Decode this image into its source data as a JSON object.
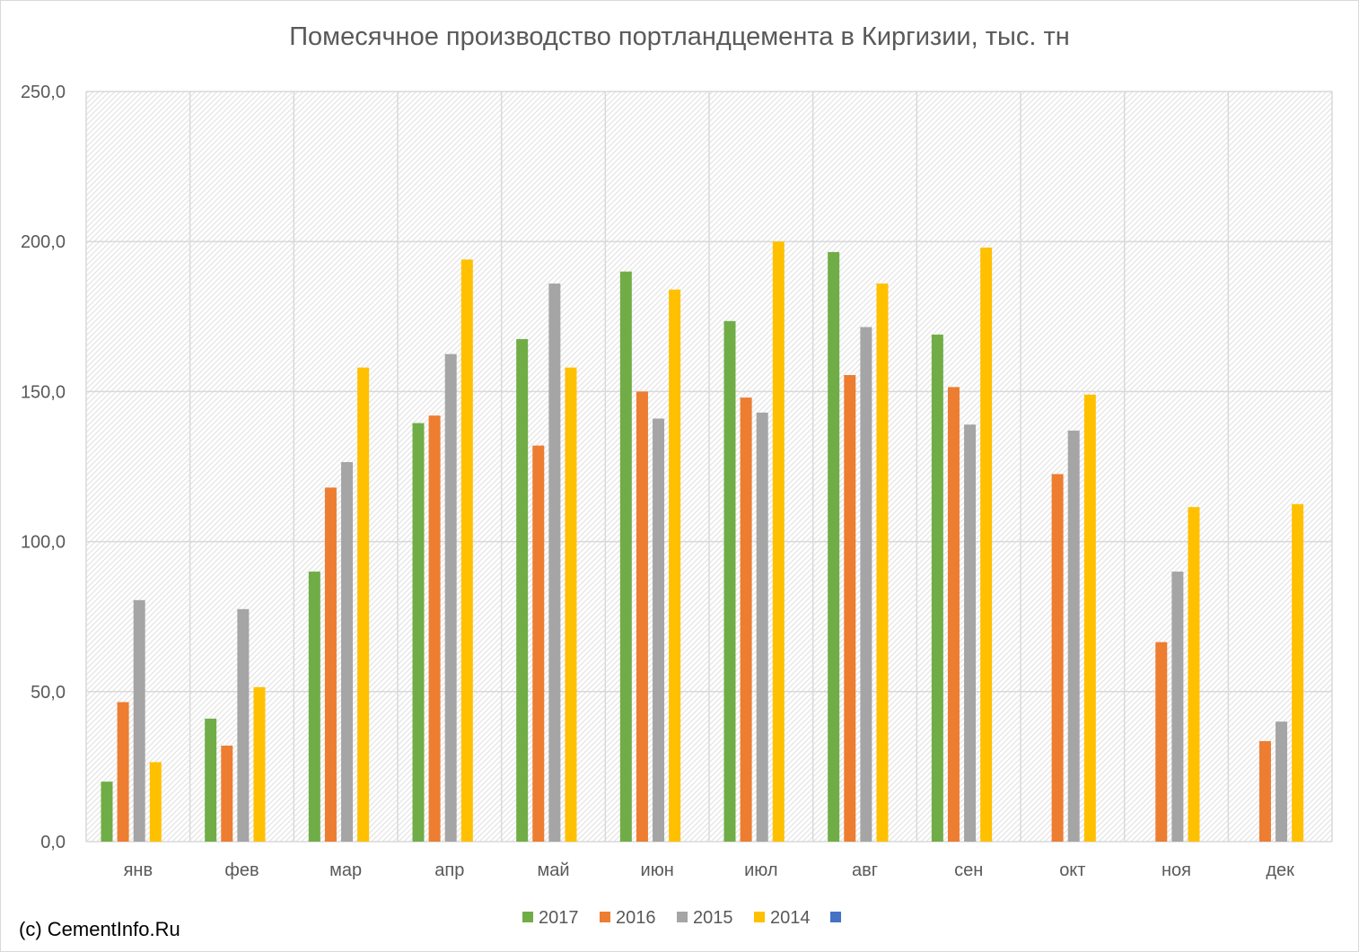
{
  "copyright": "(c) CementInfo.Ru",
  "chart_data": {
    "type": "bar",
    "title": "Помесячное производство портландцемента в Киргизии, тыс. тн",
    "xlabel": "",
    "ylabel": "",
    "ylim": [
      0,
      250
    ],
    "yticks": [
      "0,0",
      "50,0",
      "100,0",
      "150,0",
      "200,0",
      "250,0"
    ],
    "categories": [
      "янв",
      "фев",
      "мар",
      "апр",
      "май",
      "июн",
      "июл",
      "авг",
      "сен",
      "окт",
      "ноя",
      "дек"
    ],
    "grid": true,
    "legend_position": "bottom",
    "series": [
      {
        "name": "2017",
        "color": "#70ad47",
        "values": [
          20,
          41,
          90,
          139.5,
          167.5,
          190,
          173.5,
          196.5,
          169,
          null,
          null,
          null
        ]
      },
      {
        "name": "2016",
        "color": "#ed7d31",
        "values": [
          46.5,
          32,
          118,
          142,
          132,
          150,
          148,
          155.5,
          151.5,
          122.5,
          66.5,
          33.5
        ]
      },
      {
        "name": "2015",
        "color": "#a5a5a5",
        "values": [
          80.5,
          77.5,
          126.5,
          162.5,
          186,
          141,
          143,
          171.5,
          139,
          137,
          90,
          40
        ]
      },
      {
        "name": "2014",
        "color": "#ffc000",
        "values": [
          26.5,
          51.5,
          158,
          194,
          158,
          184,
          200,
          186,
          198,
          149,
          111.5,
          112.5
        ]
      },
      {
        "name": "",
        "color": "#4472c4",
        "values": [
          null,
          null,
          null,
          null,
          null,
          null,
          null,
          null,
          null,
          null,
          null,
          null
        ]
      }
    ]
  }
}
